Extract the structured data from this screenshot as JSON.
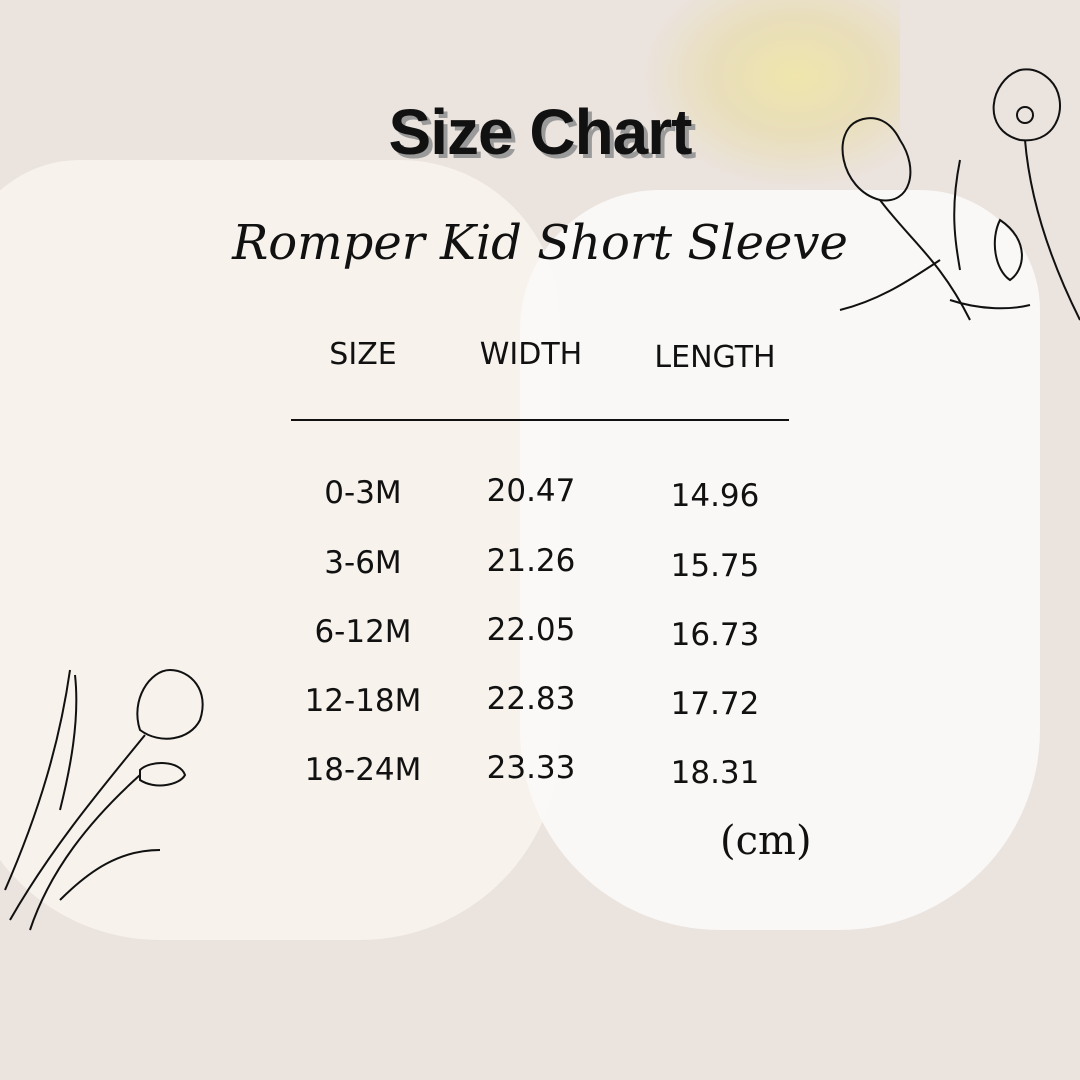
{
  "title": "Size Chart",
  "subtitle": "Romper Kid Short Sleeve",
  "table": {
    "headers": [
      "SIZE",
      "WIDTH",
      "LENGTH"
    ],
    "rows": [
      [
        "0-3M",
        "20.47",
        "14.96"
      ],
      [
        "3-6M",
        "21.26",
        "15.75"
      ],
      [
        "6-12M",
        "22.05",
        "16.73"
      ],
      [
        "12-18M",
        "22.83",
        "17.72"
      ],
      [
        "18-24M",
        "23.33",
        "18.31"
      ]
    ]
  },
  "unit": "(cm)"
}
